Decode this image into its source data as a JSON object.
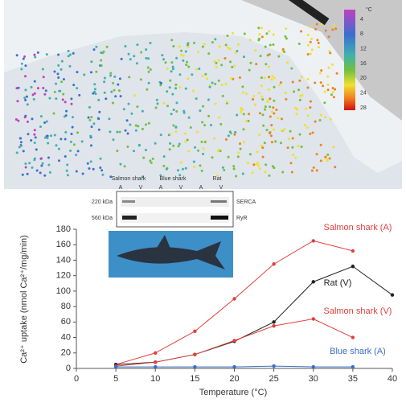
{
  "map": {
    "colorbar_unit": "°C",
    "colorbar_labels": [
      "4",
      "8",
      "12",
      "16",
      "20",
      "24",
      "28"
    ]
  },
  "blot": {
    "columns": [
      "Salmon shark",
      "Blue shark",
      "Rat"
    ],
    "lanes": [
      "A",
      "V",
      "A",
      "V",
      "A",
      "V"
    ],
    "rows": [
      {
        "size": "220 kDa",
        "protein": "SERCA"
      },
      {
        "size": "560 kDa",
        "protein": "RyR"
      }
    ]
  },
  "chart_data": {
    "type": "line",
    "x_label": "Temperature (°C)",
    "y_label": "Ca²⁺ uptake (nmol Ca²⁺/mg/min)",
    "x": [
      5,
      10,
      15,
      20,
      25,
      30,
      35,
      40
    ],
    "series": [
      {
        "name": "Salmon shark (A)",
        "color": "#e0403c",
        "values": [
          5,
          20,
          48,
          90,
          135,
          165,
          152,
          null
        ]
      },
      {
        "name": "Rat (V)",
        "color": "#222222",
        "values": [
          5,
          8,
          18,
          35,
          60,
          112,
          132,
          95
        ]
      },
      {
        "name": "Salmon shark (V)",
        "color": "#e0403c",
        "values": [
          3,
          8,
          18,
          36,
          55,
          64,
          40,
          null
        ]
      },
      {
        "name": "Blue shark (A)",
        "color": "#3a6fc4",
        "values": [
          2,
          2,
          2,
          2,
          3,
          2,
          2,
          null
        ]
      }
    ],
    "xlim": [
      0,
      40
    ],
    "xticks": [
      0,
      5,
      10,
      15,
      20,
      25,
      30,
      35,
      40
    ],
    "ylim": [
      0,
      180
    ],
    "yticks": [
      0,
      20,
      40,
      60,
      80,
      100,
      120,
      140,
      160,
      180
    ]
  }
}
